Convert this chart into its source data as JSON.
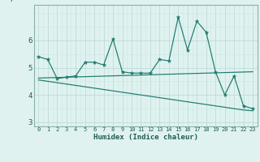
{
  "xlabel": "Humidex (Indice chaleur)",
  "x": [
    0,
    1,
    2,
    3,
    4,
    5,
    6,
    7,
    8,
    9,
    10,
    11,
    12,
    13,
    14,
    15,
    16,
    17,
    18,
    19,
    20,
    21,
    22,
    23
  ],
  "line1": [
    5.4,
    5.3,
    4.6,
    4.65,
    4.7,
    5.2,
    5.2,
    5.1,
    6.05,
    4.85,
    4.8,
    4.8,
    4.8,
    5.3,
    5.25,
    6.85,
    5.65,
    6.7,
    6.3,
    4.85,
    4.0,
    4.7,
    3.6,
    3.5
  ],
  "line2": [
    4.62,
    4.63,
    4.64,
    4.65,
    4.66,
    4.67,
    4.68,
    4.69,
    4.7,
    4.71,
    4.72,
    4.73,
    4.74,
    4.75,
    4.76,
    4.77,
    4.78,
    4.79,
    4.8,
    4.81,
    4.82,
    4.83,
    4.84,
    4.85
  ],
  "line3": [
    4.55,
    4.5,
    4.45,
    4.4,
    4.35,
    4.3,
    4.25,
    4.2,
    4.15,
    4.1,
    4.05,
    4.0,
    3.95,
    3.9,
    3.85,
    3.8,
    3.75,
    3.7,
    3.65,
    3.6,
    3.55,
    3.5,
    3.45,
    3.42
  ],
  "line_color": "#1e7a6e",
  "bg_color": "#dff2f0",
  "grid_color": "#b8d8d5",
  "grid_color2": "#cce8e5",
  "ylim": [
    2.85,
    7.3
  ],
  "yticks": [
    3,
    4,
    5,
    6
  ],
  "xlim": [
    -0.5,
    23.5
  ]
}
